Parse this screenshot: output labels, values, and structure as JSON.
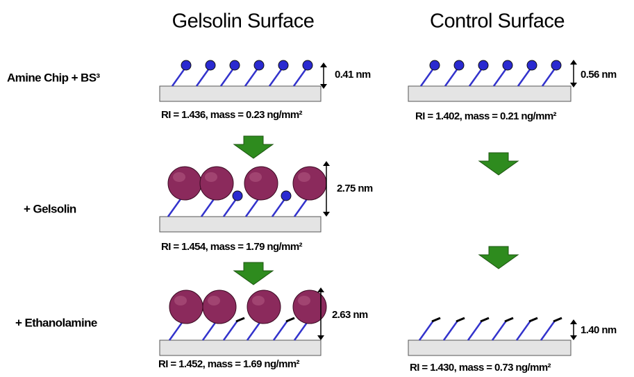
{
  "columns": [
    "Gelsolin Surface",
    "Control Surface"
  ],
  "rows": [
    "Amine Chip + BS³",
    "+ Gelsolin",
    "+ Ethanolamine"
  ],
  "panels": [
    {
      "thickness": "0.41 nm",
      "properties": "RI = 1.436, mass =  0.23 ng/mm²"
    },
    {
      "thickness": "0.56 nm",
      "properties": "RI = 1.402, mass = 0.21 ng/mm²"
    },
    {
      "thickness": "2.75 nm",
      "properties": "RI = 1.454, mass = 1.79 ng/mm²"
    },
    {
      "thickness": "2.63 nm",
      "properties": "RI = 1.452, mass = 1.69 ng/mm²"
    },
    {
      "thickness": "1.40 nm",
      "properties": "RI = 1.430, mass = 0.73 ng/mm²"
    }
  ]
}
